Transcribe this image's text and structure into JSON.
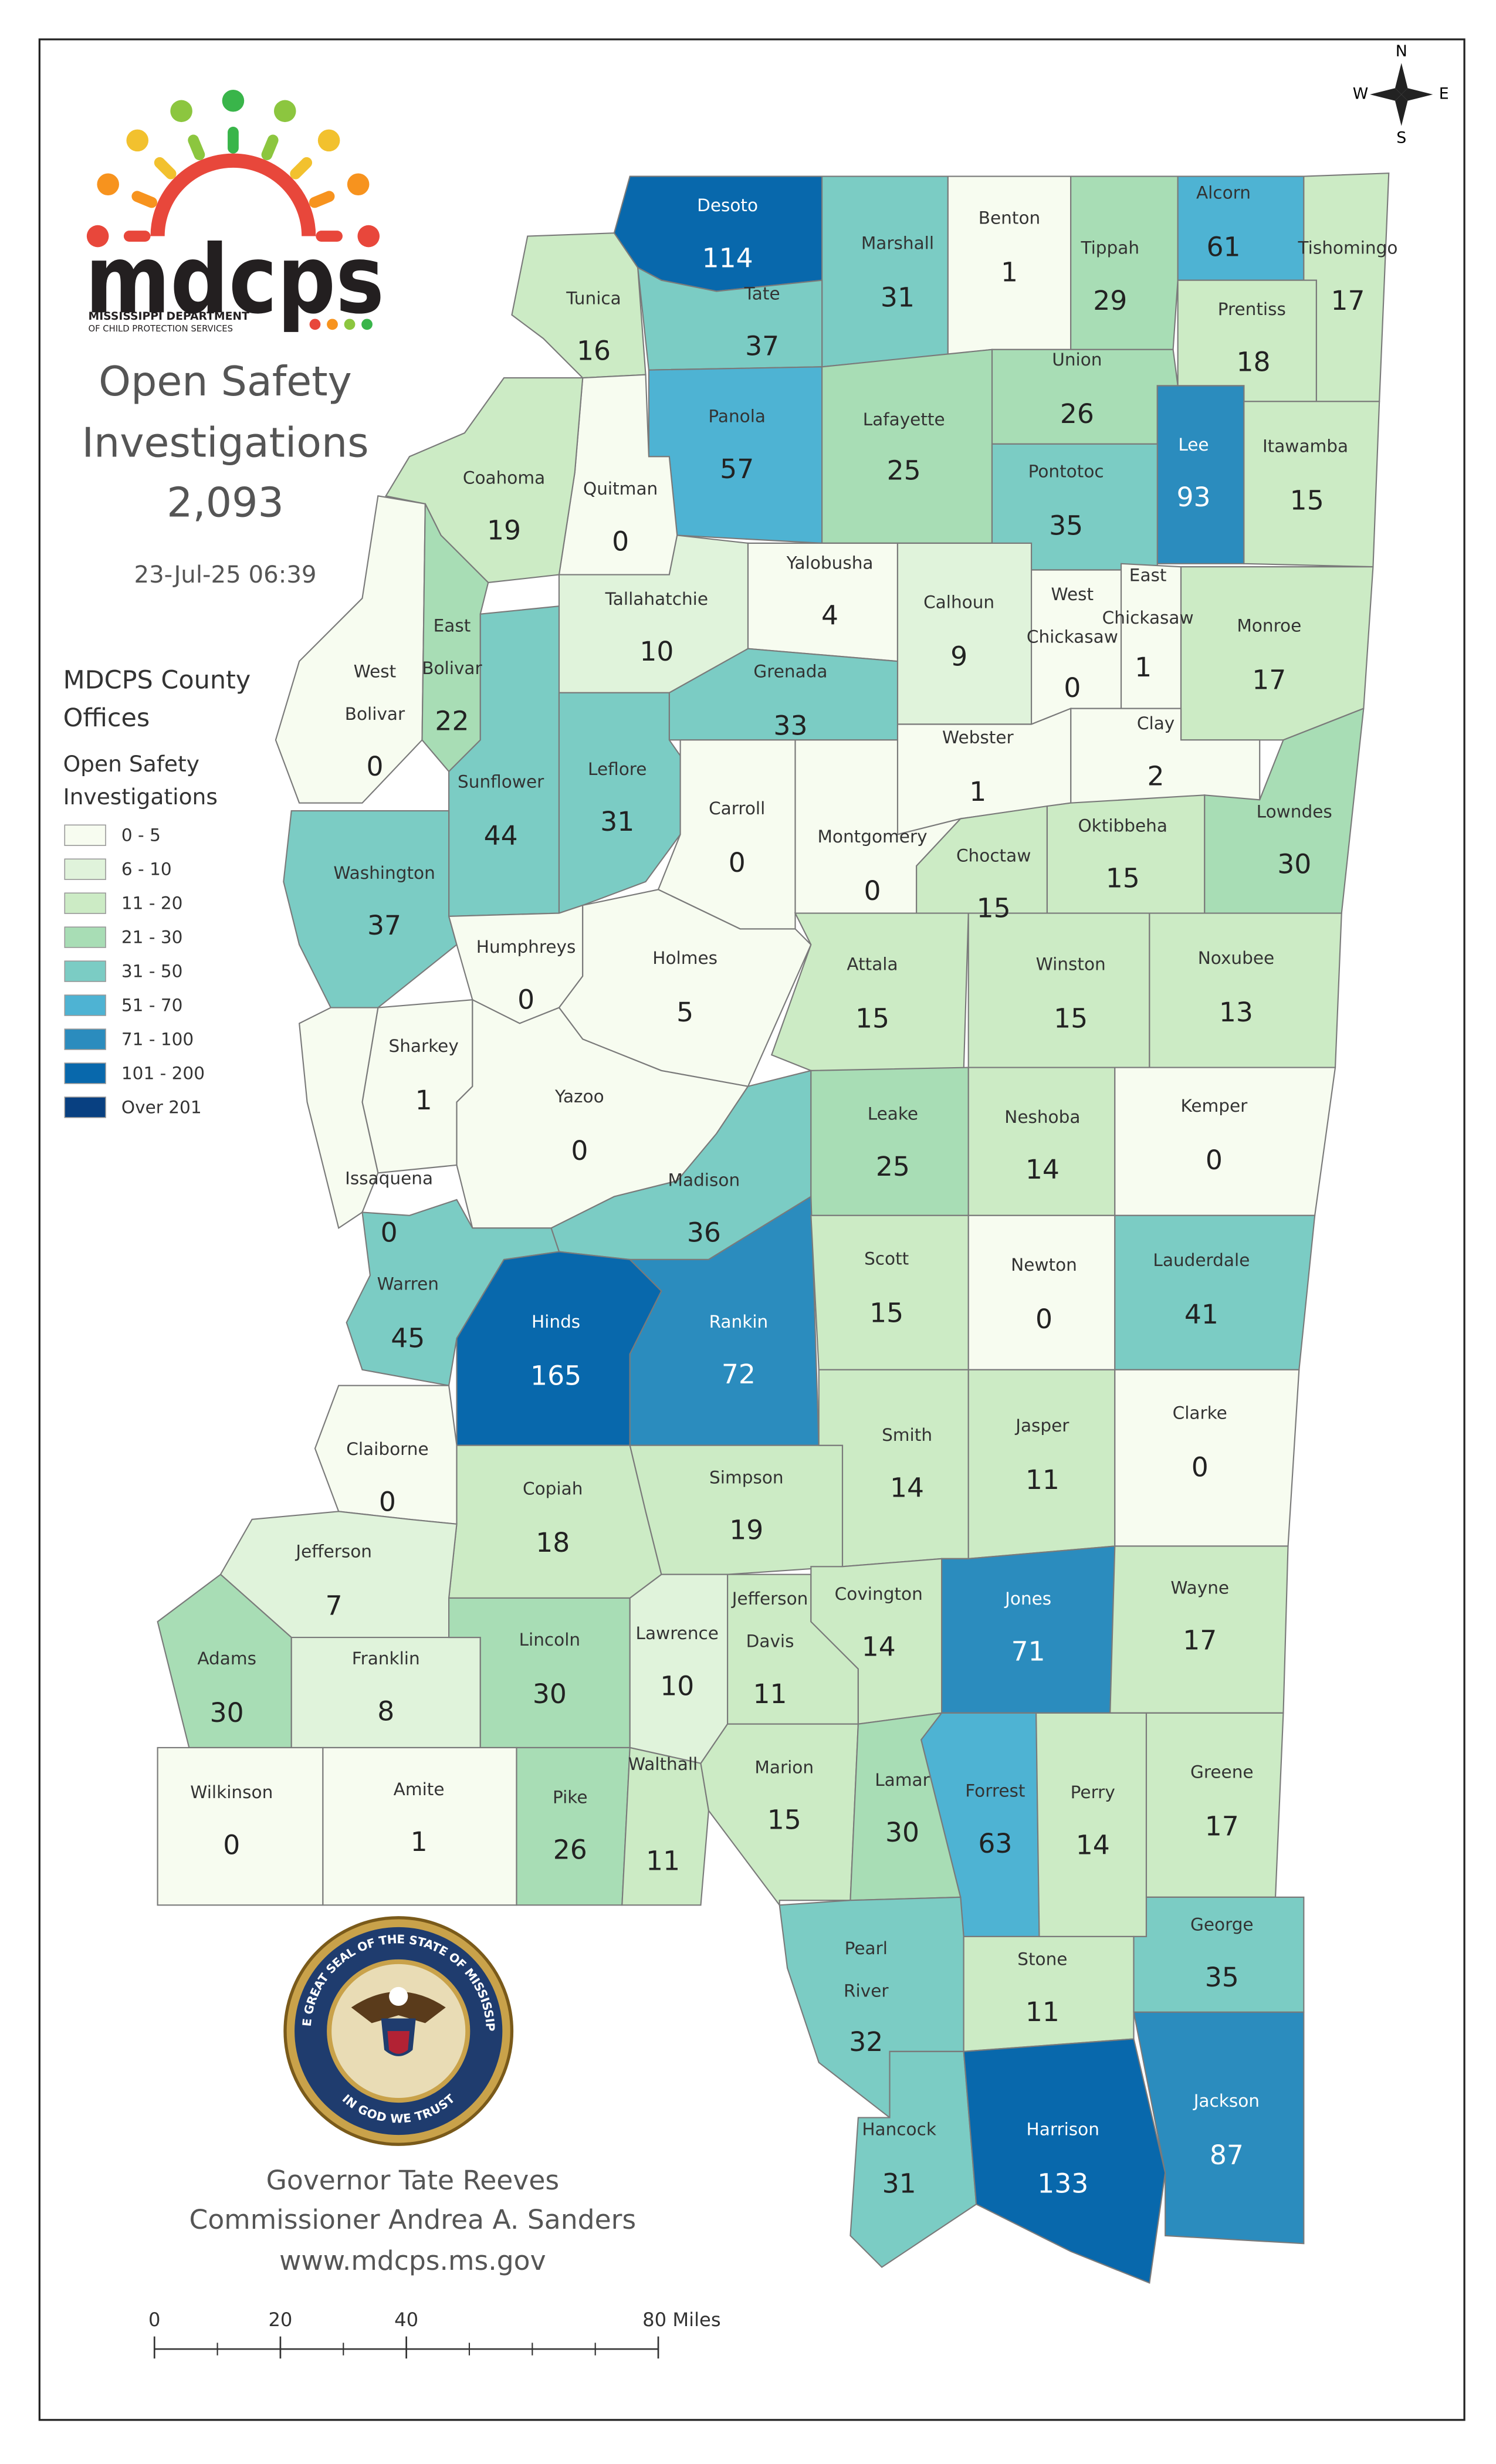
{
  "logo": {
    "name": "mdcps",
    "subtitle": [
      "MISSISSIPPI DEPARTMENT",
      "OF CHILD PROTECTION SERVICES"
    ]
  },
  "header": {
    "title": [
      "Open Safety",
      "Investigations"
    ],
    "total": "2,093",
    "timestamp": "23-Jul-25 06:39"
  },
  "legend": {
    "title": [
      "MDCPS County",
      "Offices"
    ],
    "subtitle": [
      "Open Safety",
      "Investigations"
    ],
    "classes": [
      {
        "label": "0 - 5",
        "color": "#f7fcf0"
      },
      {
        "label": "6 - 10",
        "color": "#e0f3db"
      },
      {
        "label": "11 - 20",
        "color": "#ccebc5"
      },
      {
        "label": "21 - 30",
        "color": "#a8ddb5"
      },
      {
        "label": "31 - 50",
        "color": "#7bccc4"
      },
      {
        "label": "51 - 70",
        "color": "#4eb3d3"
      },
      {
        "label": "71 - 100",
        "color": "#2b8cbe"
      },
      {
        "label": "101 - 200",
        "color": "#0868ac"
      },
      {
        "label": "Over 201",
        "color": "#084081"
      }
    ]
  },
  "counties": [
    {
      "name": "Desoto",
      "value": 114,
      "color": "#0868ac"
    },
    {
      "name": "Tunica",
      "value": 16,
      "color": "#ccebc5"
    },
    {
      "name": "Marshall",
      "value": 31,
      "color": "#7bccc4"
    },
    {
      "name": "Tate",
      "value": 37,
      "color": "#7bccc4"
    },
    {
      "name": "Benton",
      "value": 1,
      "color": "#f7fcf0"
    },
    {
      "name": "Tippah",
      "value": 29,
      "color": "#a8ddb5"
    },
    {
      "name": "Alcorn",
      "value": 61,
      "color": "#4eb3d3"
    },
    {
      "name": "Tishomingo",
      "value": 17,
      "color": "#ccebc5"
    },
    {
      "name": "Prentiss",
      "value": 18,
      "color": "#ccebc5"
    },
    {
      "name": "Union",
      "value": 26,
      "color": "#a8ddb5"
    },
    {
      "name": "Lee",
      "value": 93,
      "color": "#2b8cbe"
    },
    {
      "name": "Itawamba",
      "value": 15,
      "color": "#ccebc5"
    },
    {
      "name": "Panola",
      "value": 57,
      "color": "#4eb3d3"
    },
    {
      "name": "Lafayette",
      "value": 25,
      "color": "#a8ddb5"
    },
    {
      "name": "Pontotoc",
      "value": 35,
      "color": "#7bccc4"
    },
    {
      "name": "Quitman",
      "value": 0,
      "color": "#f7fcf0"
    },
    {
      "name": "Coahoma",
      "value": 19,
      "color": "#ccebc5"
    },
    {
      "name": "Tallahatchie",
      "value": 10,
      "color": "#e0f3db"
    },
    {
      "name": "Yalobusha",
      "value": 4,
      "color": "#f7fcf0"
    },
    {
      "name": "Calhoun",
      "value": 9,
      "color": "#e0f3db"
    },
    {
      "name": [
        "West",
        "Chickasaw"
      ],
      "value": 0,
      "color": "#f7fcf0"
    },
    {
      "name": [
        "East",
        "Chickasaw"
      ],
      "value": 1,
      "color": "#f7fcf0"
    },
    {
      "name": "Monroe",
      "value": 17,
      "color": "#ccebc5"
    },
    {
      "name": "Clay",
      "value": 2,
      "color": "#f7fcf0"
    },
    {
      "name": "Webster",
      "value": 1,
      "color": "#f7fcf0"
    },
    {
      "name": "Grenada",
      "value": 33,
      "color": "#7bccc4"
    },
    {
      "name": [
        "West",
        "Bolivar"
      ],
      "value": 0,
      "color": "#f7fcf0"
    },
    {
      "name": [
        "East",
        "Bolivar"
      ],
      "value": 22,
      "color": "#a8ddb5"
    },
    {
      "name": "Sunflower",
      "value": 44,
      "color": "#7bccc4"
    },
    {
      "name": "Leflore",
      "value": 31,
      "color": "#7bccc4"
    },
    {
      "name": "Carroll",
      "value": 0,
      "color": "#f7fcf0"
    },
    {
      "name": "Montgomery",
      "value": 0,
      "color": "#f7fcf0"
    },
    {
      "name": "Choctaw",
      "value": 15,
      "color": "#ccebc5"
    },
    {
      "name": "Oktibbeha",
      "value": 15,
      "color": "#ccebc5"
    },
    {
      "name": "Lowndes",
      "value": 30,
      "color": "#a8ddb5"
    },
    {
      "name": "Washington",
      "value": 37,
      "color": "#7bccc4"
    },
    {
      "name": "Humphreys",
      "value": 0,
      "color": "#f7fcf0"
    },
    {
      "name": "Holmes",
      "value": 5,
      "color": "#f7fcf0"
    },
    {
      "name": "Attala",
      "value": 15,
      "color": "#ccebc5"
    },
    {
      "name": "Winston",
      "value": 15,
      "color": "#ccebc5"
    },
    {
      "name": "Noxubee",
      "value": 13,
      "color": "#ccebc5"
    },
    {
      "name": "Sharkey",
      "value": 1,
      "color": "#f7fcf0"
    },
    {
      "name": "Issaquena",
      "value": 0,
      "color": "#f7fcf0"
    },
    {
      "name": "Yazoo",
      "value": 0,
      "color": "#f7fcf0"
    },
    {
      "name": "Madison",
      "value": 36,
      "color": "#7bccc4"
    },
    {
      "name": "Leake",
      "value": 25,
      "color": "#a8ddb5"
    },
    {
      "name": "Neshoba",
      "value": 14,
      "color": "#ccebc5"
    },
    {
      "name": "Kemper",
      "value": 0,
      "color": "#f7fcf0"
    },
    {
      "name": "Warren",
      "value": 45,
      "color": "#7bccc4"
    },
    {
      "name": "Hinds",
      "value": 165,
      "color": "#0868ac"
    },
    {
      "name": "Rankin",
      "value": 72,
      "color": "#2b8cbe"
    },
    {
      "name": "Scott",
      "value": 15,
      "color": "#ccebc5"
    },
    {
      "name": "Newton",
      "value": 0,
      "color": "#f7fcf0"
    },
    {
      "name": "Lauderdale",
      "value": 41,
      "color": "#7bccc4"
    },
    {
      "name": "Claiborne",
      "value": 0,
      "color": "#f7fcf0"
    },
    {
      "name": "Copiah",
      "value": 18,
      "color": "#ccebc5"
    },
    {
      "name": "Simpson",
      "value": 19,
      "color": "#ccebc5"
    },
    {
      "name": "Smith",
      "value": 14,
      "color": "#ccebc5"
    },
    {
      "name": "Jasper",
      "value": 11,
      "color": "#ccebc5"
    },
    {
      "name": "Clarke",
      "value": 0,
      "color": "#f7fcf0"
    },
    {
      "name": "Jefferson",
      "value": 7,
      "color": "#e0f3db"
    },
    {
      "name": "Adams",
      "value": 30,
      "color": "#a8ddb5"
    },
    {
      "name": "Franklin",
      "value": 8,
      "color": "#e0f3db"
    },
    {
      "name": "Lincoln",
      "value": 30,
      "color": "#a8ddb5"
    },
    {
      "name": "Lawrence",
      "value": 10,
      "color": "#e0f3db"
    },
    {
      "name": [
        "Jefferson",
        "Davis"
      ],
      "value": 11,
      "color": "#ccebc5"
    },
    {
      "name": "Covington",
      "value": 14,
      "color": "#ccebc5"
    },
    {
      "name": "Jones",
      "value": 71,
      "color": "#2b8cbe"
    },
    {
      "name": "Wayne",
      "value": 17,
      "color": "#ccebc5"
    },
    {
      "name": "Wilkinson",
      "value": 0,
      "color": "#f7fcf0"
    },
    {
      "name": "Amite",
      "value": 1,
      "color": "#f7fcf0"
    },
    {
      "name": "Pike",
      "value": 26,
      "color": "#a8ddb5"
    },
    {
      "name": "Walthall",
      "value": 11,
      "color": "#ccebc5"
    },
    {
      "name": "Marion",
      "value": 15,
      "color": "#ccebc5"
    },
    {
      "name": "Lamar",
      "value": 30,
      "color": "#a8ddb5"
    },
    {
      "name": "Forrest",
      "value": 63,
      "color": "#4eb3d3"
    },
    {
      "name": "Perry",
      "value": 14,
      "color": "#ccebc5"
    },
    {
      "name": "Greene",
      "value": 17,
      "color": "#ccebc5"
    },
    {
      "name": [
        "Pearl",
        "River"
      ],
      "value": 32,
      "color": "#7bccc4"
    },
    {
      "name": "Stone",
      "value": 11,
      "color": "#ccebc5"
    },
    {
      "name": "George",
      "value": 35,
      "color": "#7bccc4"
    },
    {
      "name": "Hancock",
      "value": 31,
      "color": "#7bccc4"
    },
    {
      "name": "Harrison",
      "value": 133,
      "color": "#0868ac"
    },
    {
      "name": "Jackson",
      "value": 87,
      "color": "#2b8cbe"
    }
  ],
  "seal": {
    "ring": "THE GREAT SEAL OF THE STATE OF MISSISSIPPI",
    "motto": "IN GOD WE TRUST"
  },
  "footer": {
    "governor": "Governor Tate Reeves",
    "commissioner": "Commissioner Andrea A. Sanders",
    "website": "www.mdcps.ms.gov"
  },
  "scale_bar": {
    "ticks": [
      0,
      20,
      40,
      {
        "value": 80,
        "label": "80 Miles"
      }
    ]
  },
  "compass": {
    "north": "N",
    "south": "S",
    "east": "E",
    "west": "W"
  }
}
